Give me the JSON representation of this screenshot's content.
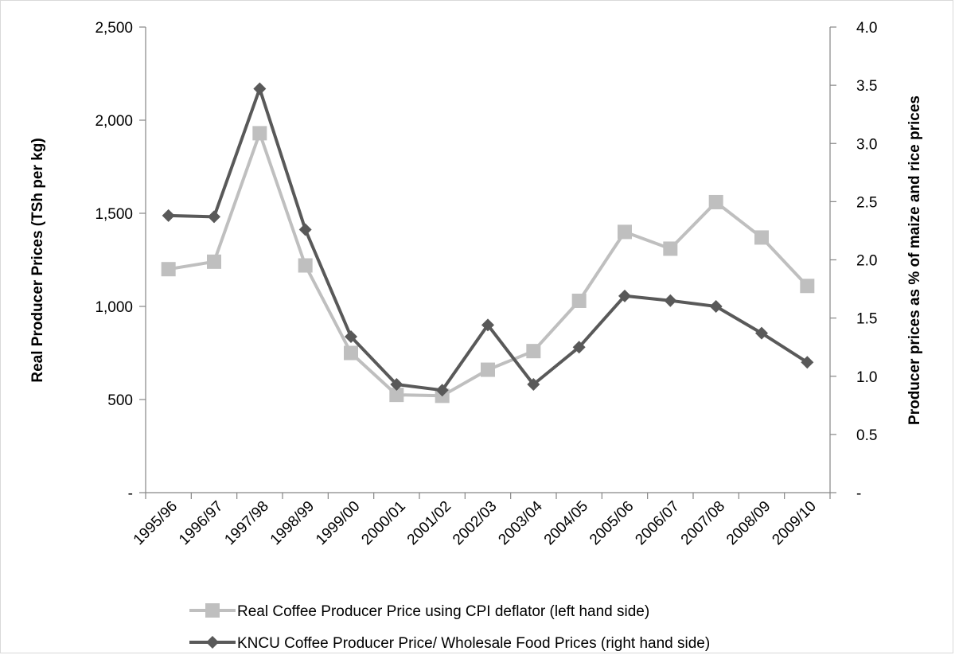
{
  "chart_data": {
    "type": "line",
    "categories": [
      "1995/96",
      "1996/97",
      "1997/98",
      "1998/99",
      "1999/00",
      "2000/01",
      "2001/02",
      "2002/03",
      "2003/04",
      "2004/05",
      "2005/06",
      "2006/07",
      "2007/08",
      "2008/09",
      "2009/10"
    ],
    "y_left": {
      "label": "Real Producer Prices (TSh per kg)",
      "range": [
        0,
        2500
      ],
      "ticks": [
        0,
        500,
        1000,
        1500,
        2000,
        2500
      ],
      "tick_labels": [
        "-",
        "500",
        "1,000",
        "1,500",
        "2,000",
        "2,500"
      ]
    },
    "y_right": {
      "label": "Producer prices as % of maize and rice prices",
      "range": [
        0,
        4.0
      ],
      "ticks": [
        0,
        0.5,
        1.0,
        1.5,
        2.0,
        2.5,
        3.0,
        3.5,
        4.0
      ],
      "tick_labels": [
        "-",
        "0.5",
        "1.0",
        "1.5",
        "2.0",
        "2.5",
        "3.0",
        "3.5",
        "4.0"
      ]
    },
    "series": [
      {
        "name": "Real Coffee Producer Price using CPI deflator (left hand side)",
        "axis": "left",
        "color": "#bfbfbf",
        "marker": "square",
        "values": [
          1200,
          1240,
          1930,
          1220,
          750,
          525,
          520,
          660,
          760,
          1030,
          1400,
          1310,
          1560,
          1370,
          1110
        ]
      },
      {
        "name": "KNCU Coffee Producer Price/ Wholesale Food Prices (right hand side)",
        "axis": "right",
        "color": "#595959",
        "marker": "diamond",
        "values": [
          2.38,
          2.37,
          3.47,
          2.26,
          1.34,
          0.93,
          0.88,
          1.44,
          0.93,
          1.25,
          1.69,
          1.65,
          1.6,
          1.37,
          1.12
        ]
      }
    ],
    "legend_position": "bottom",
    "grid": false
  }
}
